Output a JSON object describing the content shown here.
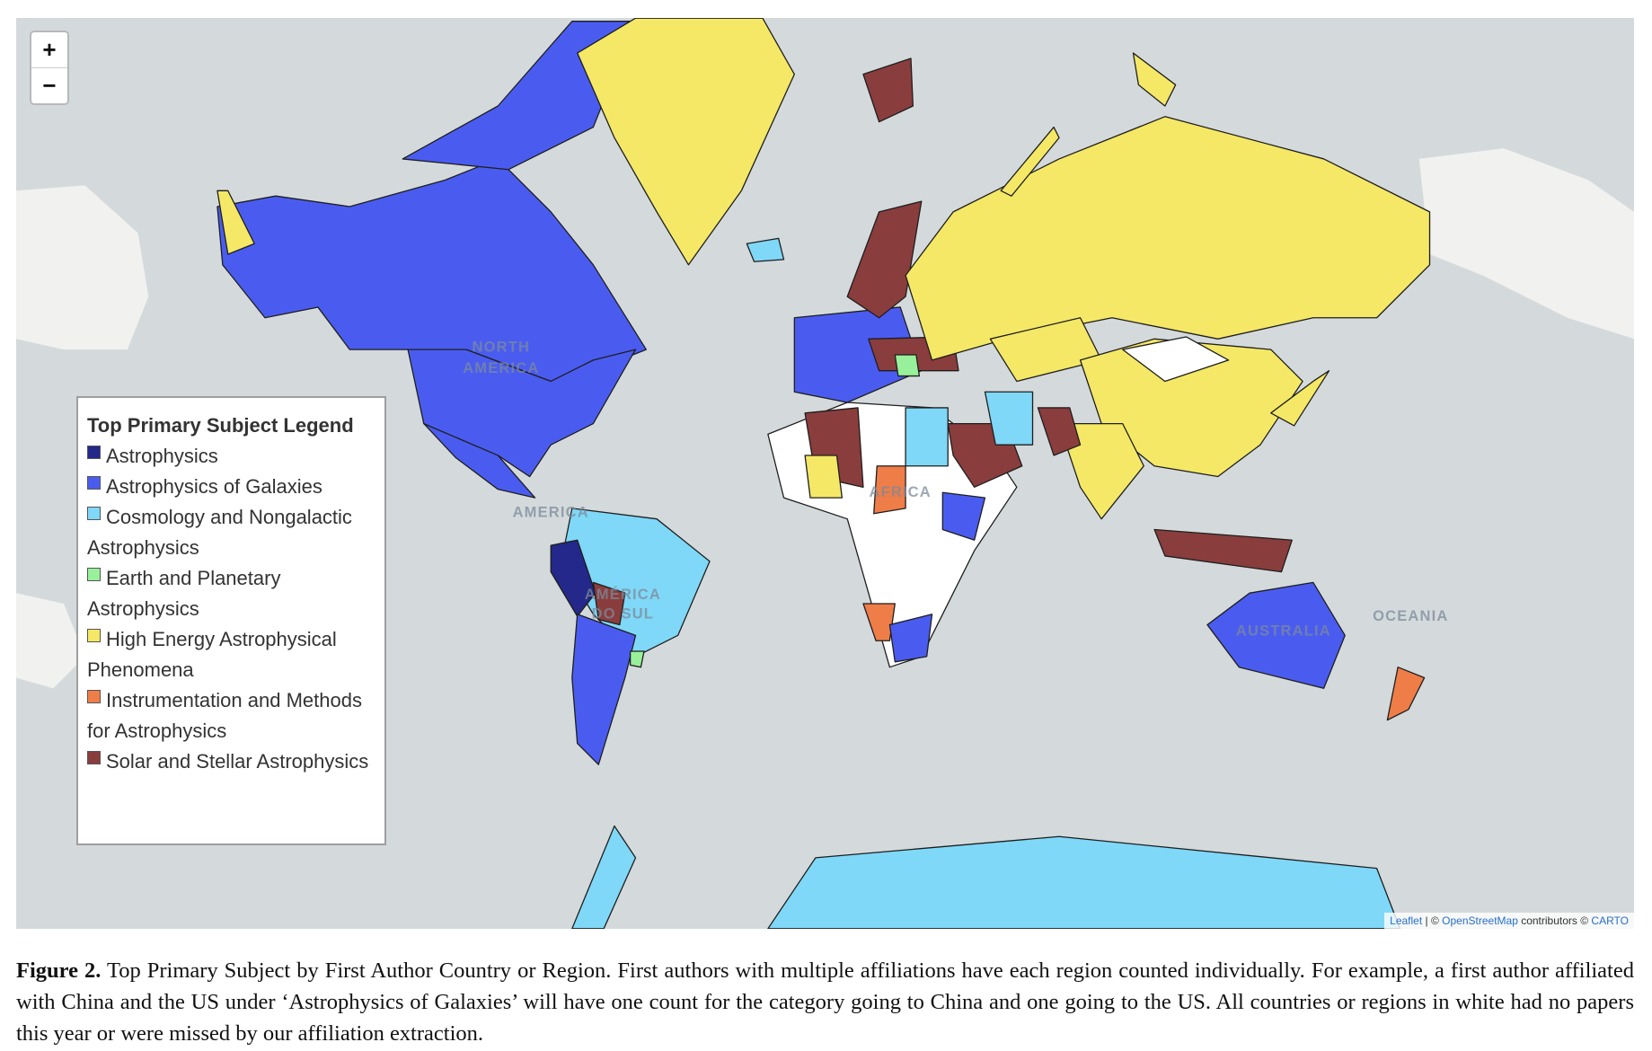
{
  "map": {
    "zoom_in": "+",
    "zoom_out": "−",
    "labels": [
      "NORTH",
      "AMERICA",
      "AMERICA",
      "AMÉRICA",
      "DO SUL",
      "AFRICA",
      "AUSTRALIA",
      "OCEANIA"
    ],
    "attribution": [
      "Leaflet",
      " | © ",
      "OpenStreetMap",
      " contributors © ",
      "CARTO"
    ]
  },
  "legend": {
    "title": "Top Primary Subject Legend",
    "items": [
      {
        "label": "Astrophysics",
        "color": "#23288a"
      },
      {
        "label": "Astrophysics of Galaxies",
        "color": "#4a5cf0"
      },
      {
        "label": "Cosmology and Nongalactic Astrophysics",
        "color": "#7fd8f7"
      },
      {
        "label": "Earth and Planetary Astrophysics",
        "color": "#98f09a"
      },
      {
        "label": "High Energy Astrophysical Phenomena",
        "color": "#f5e866"
      },
      {
        "label": "Instrumentation and Methods for Astrophysics",
        "color": "#ef7d48"
      },
      {
        "label": "Solar and Stellar Astrophysics",
        "color": "#8a3d3d"
      }
    ]
  },
  "caption": {
    "label": "Figure 2.",
    "text": "Top Primary Subject by First Author Country or Region. First authors with multiple affiliations have each region counted individually. For example, a first author affiliated with China and the US under ‘Astrophysics of Galaxies’ will have one count for the category going to China and one going to the US. All countries or regions in white had no papers this year or were missed by our affiliation extraction."
  }
}
